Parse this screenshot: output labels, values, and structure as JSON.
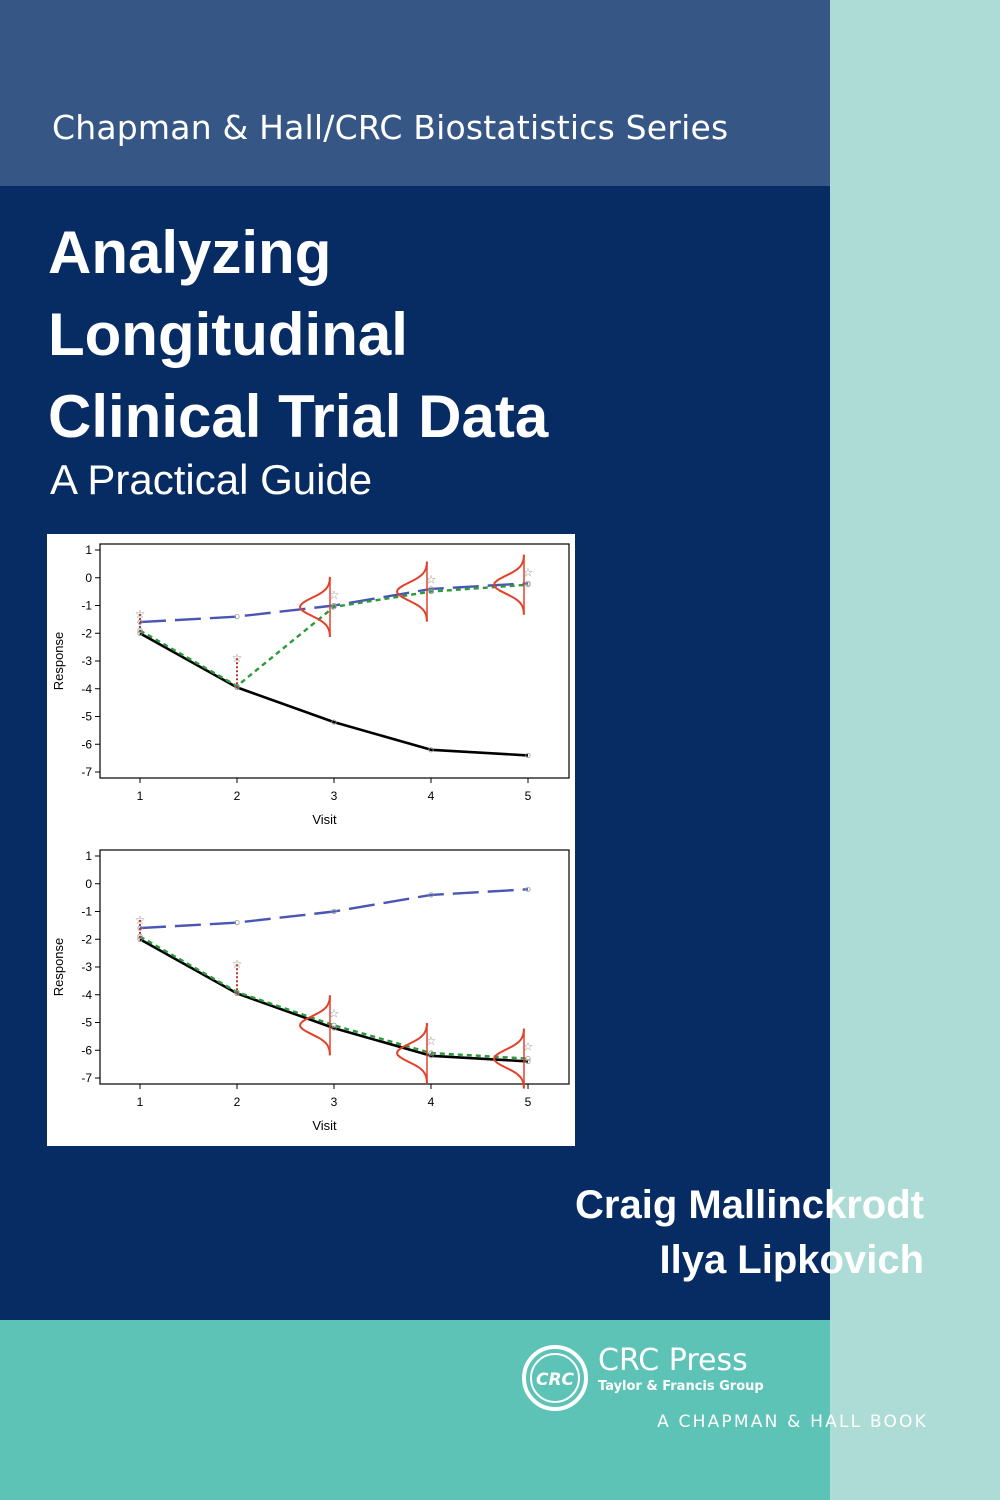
{
  "cover": {
    "series": "Chapman & Hall/CRC Biostatistics Series",
    "title_lines": [
      "Analyzing",
      "Longitudinal",
      "Clinical Trial Data"
    ],
    "subtitle": "A Practical Guide",
    "authors": [
      "Craig Mallinckrodt",
      "Ilya Lipkovich"
    ],
    "publisher": {
      "logo_text": "CRC",
      "name": "CRC Press",
      "group": "Taylor & Francis Group",
      "imprint": "A CHAPMAN & HALL BOOK"
    },
    "colors": {
      "navy": "#062c63",
      "series_band": "#365685",
      "teal_band": "#5ec3b7",
      "spine": "#addcd7"
    }
  },
  "chart_data": [
    {
      "type": "line",
      "xlabel": "Visit",
      "ylabel": "Response",
      "x": [
        1,
        2,
        3,
        4,
        5
      ],
      "ylim": [
        -7,
        1
      ],
      "yticks": [
        1,
        0,
        -1,
        -2,
        -3,
        -4,
        -5,
        -6,
        -7
      ],
      "series": [
        {
          "style": "solid",
          "color": "#000000",
          "values": [
            -2.0,
            -3.95,
            -5.2,
            -6.2,
            -6.4
          ]
        },
        {
          "style": "long-dash",
          "color": "#4a55b5",
          "values": [
            -1.6,
            -1.4,
            -1.0,
            -0.4,
            -0.2
          ]
        },
        {
          "style": "short-dash",
          "color": "#2a9a3a",
          "values": [
            -1.9,
            -3.9,
            -1.05,
            -0.5,
            -0.25
          ]
        }
      ]
    },
    {
      "type": "line",
      "xlabel": "Visit",
      "ylabel": "Response",
      "x": [
        1,
        2,
        3,
        4,
        5
      ],
      "ylim": [
        -7,
        1
      ],
      "yticks": [
        1,
        0,
        -1,
        -2,
        -3,
        -4,
        -5,
        -6,
        -7
      ],
      "series": [
        {
          "style": "solid",
          "color": "#000000",
          "values": [
            -2.0,
            -3.95,
            -5.2,
            -6.2,
            -6.4
          ]
        },
        {
          "style": "long-dash",
          "color": "#4a55b5",
          "values": [
            -1.6,
            -1.4,
            -1.0,
            -0.4,
            -0.2
          ]
        },
        {
          "style": "short-dash",
          "color": "#2a9a3a",
          "values": [
            -1.9,
            -3.9,
            -5.1,
            -6.1,
            -6.3
          ]
        }
      ]
    }
  ]
}
